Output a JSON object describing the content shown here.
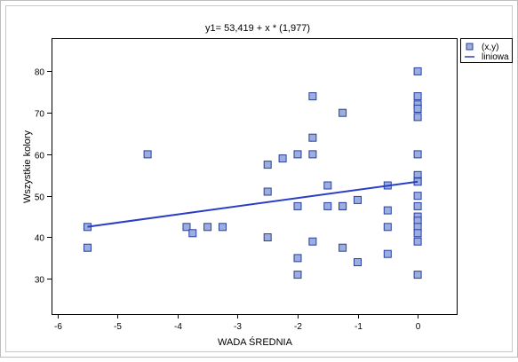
{
  "chart_data": {
    "type": "scatter",
    "title": "y1= 53,419 + x * (1,977)",
    "xlabel": "WADA ŚREDNIA",
    "ylabel": "Wszystkie kolory",
    "xlim": [
      -6.1,
      0.65
    ],
    "ylim": [
      21.5,
      88
    ],
    "x_ticks": [
      -6,
      -5,
      -4,
      -3,
      -2,
      -1,
      0
    ],
    "x_tick_labels": [
      "-6",
      "-5",
      "-4",
      "-3",
      "-2",
      "-1",
      "0"
    ],
    "y_ticks": [
      30,
      40,
      50,
      60,
      70,
      80
    ],
    "y_tick_labels": [
      "30",
      "40",
      "50",
      "60",
      "70",
      "80"
    ],
    "grid": false,
    "legend_position": "top-right outside",
    "series": [
      {
        "name": "(x,y)",
        "kind": "scatter",
        "color": "#9aaee0",
        "edge_color": "#2b3f9e",
        "x": [
          -5.5,
          -5.5,
          -4.5,
          -3.85,
          -3.75,
          -3.5,
          -3.25,
          -2.5,
          -2.5,
          -2.5,
          -2.25,
          -2,
          -2,
          -2,
          -2,
          -1.75,
          -1.75,
          -1.75,
          -1.75,
          -1.5,
          -1.5,
          -1.25,
          -1.25,
          -1.25,
          -1.25,
          -1,
          -1,
          -0.5,
          -0.5,
          -0.5,
          -0.5,
          0,
          0,
          0,
          0,
          0,
          0,
          0,
          0,
          0,
          0,
          0,
          0,
          0,
          0,
          0,
          0,
          0
        ],
        "y": [
          42.5,
          37.5,
          60,
          42.5,
          41,
          42.5,
          42.5,
          57.5,
          51,
          40,
          59,
          60,
          47.5,
          35,
          31,
          74,
          64,
          60,
          39,
          52.5,
          47.5,
          70,
          47.5,
          47.5,
          37.5,
          49,
          34,
          52.5,
          46.5,
          42.5,
          36,
          80,
          74,
          72,
          71,
          69,
          60,
          55,
          53.5,
          50,
          47.5,
          45,
          44,
          42.5,
          41,
          39,
          31,
          53.4
        ]
      },
      {
        "name": "liniowa",
        "kind": "line",
        "color": "#2b3fc4",
        "x": [
          -5.5,
          0
        ],
        "y": [
          42.55,
          53.42
        ]
      }
    ]
  }
}
